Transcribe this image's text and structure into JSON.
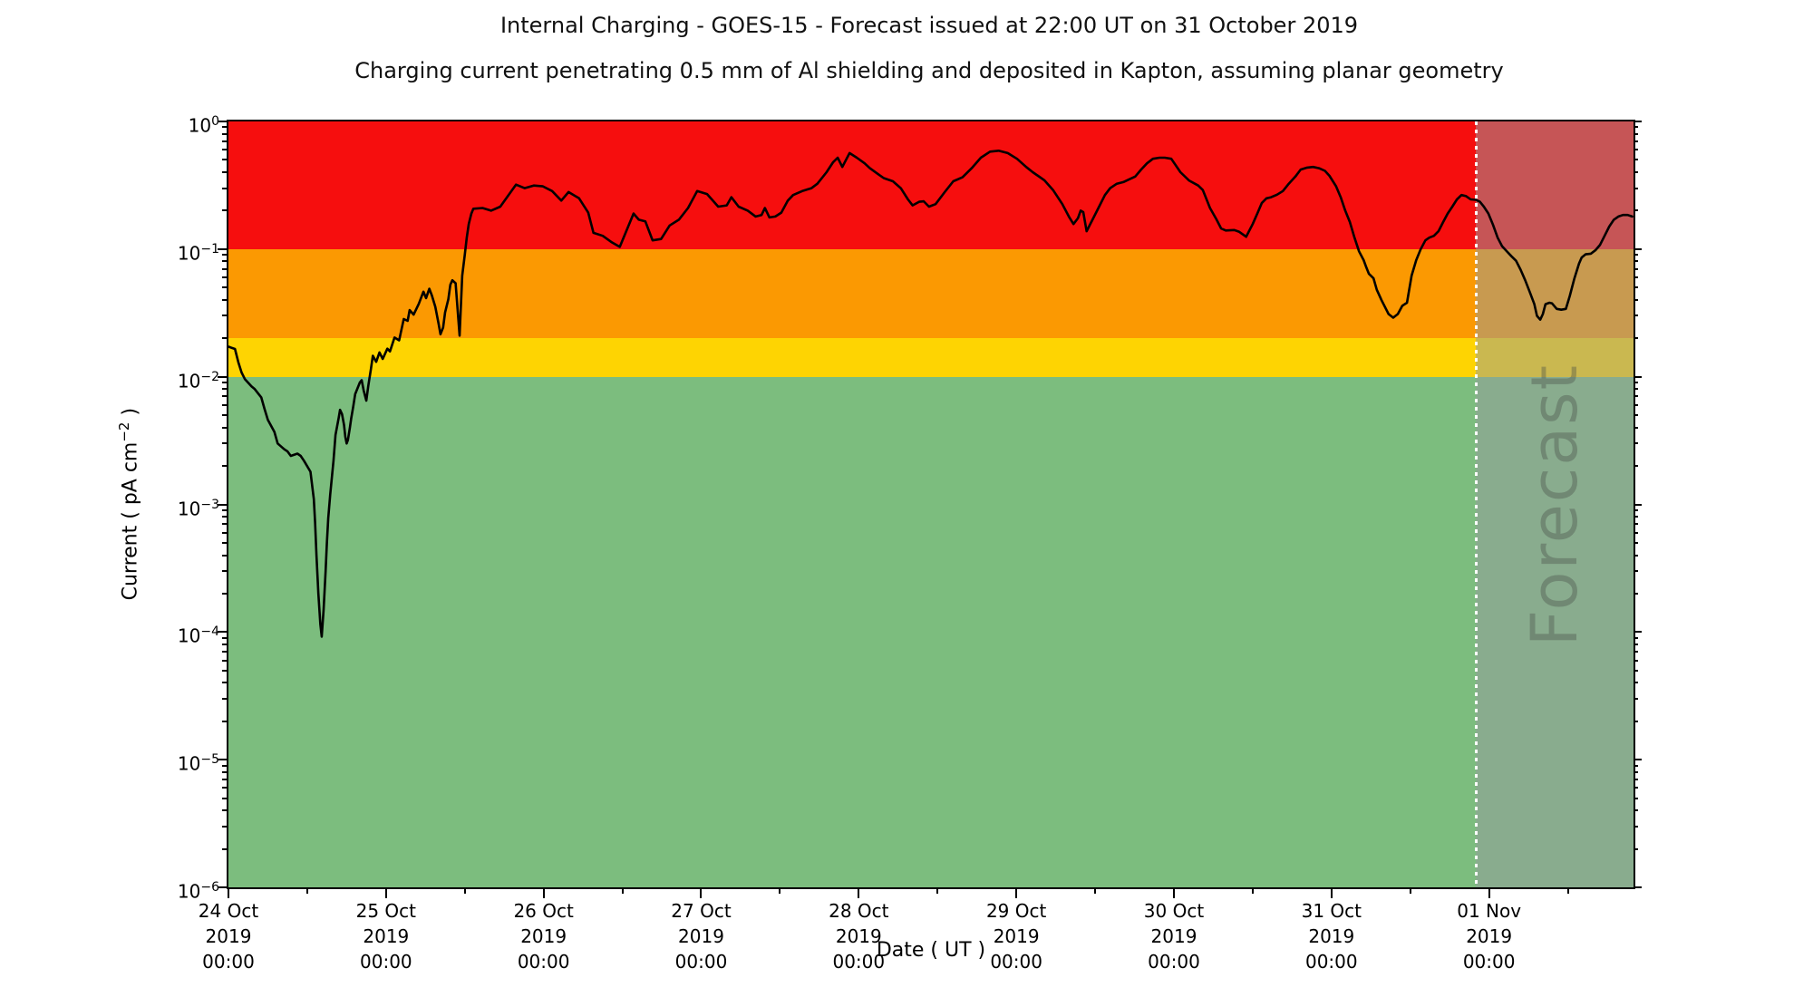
{
  "title": "Internal Charging - GOES-15 - Forecast issued at 22:00 UT on 31 October 2019",
  "subtitle": "Charging current penetrating 0.5 mm of Al shielding and deposited in Kapton, assuming planar geometry",
  "colors": {
    "red_band": "#f60e0e",
    "orange_band": "#fb9902",
    "yellow_band": "#fed402",
    "green_band": "#7cbd7e",
    "line": "#000000",
    "forecast_overlay": "rgba(150,155,158,0.5)",
    "forecast_text": "rgba(70,80,70,0.38)",
    "forecast_divider": "#ffffff",
    "axis": "#000000"
  },
  "bands": [
    {
      "name": "red",
      "from": 0.1,
      "to": 1.0
    },
    {
      "name": "orange",
      "from": 0.02,
      "to": 0.1
    },
    {
      "name": "yellow",
      "from": 0.01,
      "to": 0.02
    },
    {
      "name": "green",
      "from": 1e-06,
      "to": 0.01
    }
  ],
  "forecast": {
    "label": "Forecast",
    "start_hours": 190,
    "issued_text": "22:00 UT on 31 October 2019"
  },
  "axes": {
    "x": {
      "label": "Date ( UT )",
      "year_line": "2019",
      "time_line": "00:00",
      "major_tick_days": [
        "24 Oct",
        "25 Oct",
        "26 Oct",
        "27 Oct",
        "28 Oct",
        "29 Oct",
        "30 Oct",
        "31 Oct",
        "01 Nov"
      ],
      "minor_tick_interval_hours": 12,
      "range_hours": 214
    },
    "y": {
      "label_prefix": "Current ( pA cm",
      "label_sup": "−2",
      "label_suffix": " )",
      "tick_exponents": [
        0,
        -1,
        -2,
        -3,
        -4,
        -5,
        -6
      ],
      "scale": "log"
    }
  },
  "chart_data": {
    "type": "line",
    "title": "Internal Charging - GOES-15 - Forecast issued at 22:00 UT on 31 October 2019",
    "subtitle": "Charging current penetrating 0.5 mm of Al shielding and deposited in Kapton, assuming planar geometry",
    "xlabel": "Date ( UT )",
    "ylabel": "Current ( pA cm^-2 )",
    "x_unit": "hours since 2019-10-24 00:00 UT",
    "x_range_hours": [
      0,
      214
    ],
    "ylim": [
      1e-06,
      1
    ],
    "yscale": "log",
    "grid": false,
    "legend": false,
    "forecast_start_hours": 190,
    "threshold_bands": {
      "red": [
        0.1,
        1
      ],
      "orange": [
        0.02,
        0.1
      ],
      "yellow": [
        0.01,
        0.02
      ],
      "green": [
        1e-06,
        0.01
      ]
    },
    "series": [
      {
        "name": "Charging current",
        "color": "#000000",
        "points": [
          [
            0,
            0.0172
          ],
          [
            1,
            0.0165
          ],
          [
            1.5,
            0.013
          ],
          [
            2,
            0.0108
          ],
          [
            2.5,
            0.0096
          ],
          [
            3.5,
            0.0084
          ],
          [
            4,
            0.008
          ],
          [
            5,
            0.0069
          ],
          [
            5.5,
            0.0056
          ],
          [
            6,
            0.0046
          ],
          [
            7,
            0.0037
          ],
          [
            7.5,
            0.003
          ],
          [
            8.5,
            0.0027
          ],
          [
            9,
            0.0026
          ],
          [
            9.5,
            0.0024
          ],
          [
            10.5,
            0.0025
          ],
          [
            11,
            0.0024
          ],
          [
            11.5,
            0.0022
          ],
          [
            12.5,
            0.0018
          ],
          [
            13,
            0.0011
          ],
          [
            13.2,
            0.00072
          ],
          [
            13.4,
            0.0004
          ],
          [
            13.7,
            0.0002
          ],
          [
            14,
            0.000115
          ],
          [
            14.2,
            9.2e-05
          ],
          [
            14.5,
            0.00015
          ],
          [
            14.8,
            0.0003
          ],
          [
            15,
            0.0005
          ],
          [
            15.2,
            0.00078
          ],
          [
            15.5,
            0.0012
          ],
          [
            16,
            0.0022
          ],
          [
            16.3,
            0.0035
          ],
          [
            16.8,
            0.0048
          ],
          [
            17,
            0.0055
          ],
          [
            17.3,
            0.0051
          ],
          [
            17.6,
            0.0042
          ],
          [
            17.8,
            0.0034
          ],
          [
            18,
            0.003
          ],
          [
            18.2,
            0.0032
          ],
          [
            18.5,
            0.004
          ],
          [
            18.7,
            0.0047
          ],
          [
            19,
            0.0058
          ],
          [
            19.3,
            0.0073
          ],
          [
            20,
            0.009
          ],
          [
            20.3,
            0.0094
          ],
          [
            20.6,
            0.0078
          ],
          [
            21,
            0.0065
          ],
          [
            21.3,
            0.0085
          ],
          [
            21.7,
            0.0115
          ],
          [
            22,
            0.0146
          ],
          [
            22.5,
            0.0131
          ],
          [
            23,
            0.0155
          ],
          [
            23.5,
            0.0138
          ],
          [
            24.2,
            0.0166
          ],
          [
            24.6,
            0.0158
          ],
          [
            25.3,
            0.0203
          ],
          [
            26,
            0.0193
          ],
          [
            26.7,
            0.0283
          ],
          [
            27.3,
            0.0274
          ],
          [
            27.6,
            0.0333
          ],
          [
            28.2,
            0.0307
          ],
          [
            29,
            0.0373
          ],
          [
            29.7,
            0.0464
          ],
          [
            30.1,
            0.0413
          ],
          [
            30.6,
            0.0489
          ],
          [
            31,
            0.0432
          ],
          [
            31.5,
            0.0353
          ],
          [
            32,
            0.0261
          ],
          [
            32.3,
            0.0215
          ],
          [
            32.7,
            0.0243
          ],
          [
            33,
            0.0319
          ],
          [
            33.5,
            0.0405
          ],
          [
            33.8,
            0.0526
          ],
          [
            34.1,
            0.057
          ],
          [
            34.6,
            0.054
          ],
          [
            35.2,
            0.021
          ],
          [
            35.6,
            0.062
          ],
          [
            36,
            0.09
          ],
          [
            36.3,
            0.123
          ],
          [
            36.6,
            0.157
          ],
          [
            37,
            0.19
          ],
          [
            37.3,
            0.207
          ],
          [
            38.7,
            0.21
          ],
          [
            40,
            0.2
          ],
          [
            41.4,
            0.215
          ],
          [
            43.8,
            0.32
          ],
          [
            45.1,
            0.3
          ],
          [
            46.5,
            0.315
          ],
          [
            47.9,
            0.31
          ],
          [
            49.3,
            0.285
          ],
          [
            50.7,
            0.24
          ],
          [
            51.8,
            0.28
          ],
          [
            53.4,
            0.25
          ],
          [
            54.8,
            0.193
          ],
          [
            55.6,
            0.134
          ],
          [
            57,
            0.127
          ],
          [
            58.4,
            0.113
          ],
          [
            59.6,
            0.104
          ],
          [
            61.7,
            0.19
          ],
          [
            62.5,
            0.17
          ],
          [
            63.5,
            0.165
          ],
          [
            64.6,
            0.117
          ],
          [
            65.9,
            0.12
          ],
          [
            67.2,
            0.153
          ],
          [
            68.6,
            0.17
          ],
          [
            70,
            0.21
          ],
          [
            71.4,
            0.285
          ],
          [
            72.9,
            0.27
          ],
          [
            74.6,
            0.215
          ],
          [
            75.9,
            0.22
          ],
          [
            76.6,
            0.255
          ],
          [
            77.7,
            0.215
          ],
          [
            79.1,
            0.2
          ],
          [
            80.3,
            0.18
          ],
          [
            81.2,
            0.185
          ],
          [
            81.7,
            0.21
          ],
          [
            82.4,
            0.177
          ],
          [
            83.3,
            0.18
          ],
          [
            84.2,
            0.193
          ],
          [
            85.2,
            0.24
          ],
          [
            86,
            0.265
          ],
          [
            87.4,
            0.285
          ],
          [
            88.8,
            0.3
          ],
          [
            89.7,
            0.325
          ],
          [
            91.1,
            0.4
          ],
          [
            92.1,
            0.48
          ],
          [
            92.8,
            0.52
          ],
          [
            93.5,
            0.44
          ],
          [
            94.6,
            0.565
          ],
          [
            95.7,
            0.52
          ],
          [
            96.9,
            0.47
          ],
          [
            97.7,
            0.43
          ],
          [
            99,
            0.385
          ],
          [
            99.8,
            0.36
          ],
          [
            101.2,
            0.34
          ],
          [
            102.4,
            0.3
          ],
          [
            103.5,
            0.245
          ],
          [
            104.2,
            0.22
          ],
          [
            105.2,
            0.235
          ],
          [
            105.9,
            0.237
          ],
          [
            106.7,
            0.215
          ],
          [
            107.7,
            0.225
          ],
          [
            109.1,
            0.28
          ],
          [
            110.4,
            0.34
          ],
          [
            111.8,
            0.365
          ],
          [
            113.2,
            0.43
          ],
          [
            114.6,
            0.52
          ],
          [
            116,
            0.58
          ],
          [
            117.3,
            0.59
          ],
          [
            118.7,
            0.565
          ],
          [
            120.1,
            0.51
          ],
          [
            121.5,
            0.44
          ],
          [
            122.5,
            0.4
          ],
          [
            123.3,
            0.375
          ],
          [
            124.3,
            0.345
          ],
          [
            125.6,
            0.29
          ],
          [
            127,
            0.225
          ],
          [
            128,
            0.18
          ],
          [
            128.7,
            0.157
          ],
          [
            129.4,
            0.175
          ],
          [
            129.8,
            0.2
          ],
          [
            130.2,
            0.195
          ],
          [
            130.7,
            0.138
          ],
          [
            131.6,
            0.17
          ],
          [
            132.5,
            0.21
          ],
          [
            133.5,
            0.265
          ],
          [
            134.3,
            0.3
          ],
          [
            135.3,
            0.325
          ],
          [
            136.3,
            0.335
          ],
          [
            137.1,
            0.35
          ],
          [
            138.1,
            0.37
          ],
          [
            139,
            0.42
          ],
          [
            139.9,
            0.47
          ],
          [
            140.8,
            0.51
          ],
          [
            141.8,
            0.52
          ],
          [
            142.6,
            0.52
          ],
          [
            143.6,
            0.51
          ],
          [
            145,
            0.4
          ],
          [
            146.3,
            0.345
          ],
          [
            147.7,
            0.315
          ],
          [
            148.4,
            0.29
          ],
          [
            149.5,
            0.21
          ],
          [
            150.5,
            0.17
          ],
          [
            151.2,
            0.145
          ],
          [
            151.9,
            0.14
          ],
          [
            153.2,
            0.141
          ],
          [
            153.9,
            0.137
          ],
          [
            155,
            0.125
          ],
          [
            156,
            0.157
          ],
          [
            156.7,
            0.19
          ],
          [
            157.4,
            0.23
          ],
          [
            158.1,
            0.25
          ],
          [
            158.8,
            0.255
          ],
          [
            159.7,
            0.267
          ],
          [
            160.6,
            0.285
          ],
          [
            161.5,
            0.325
          ],
          [
            162.5,
            0.37
          ],
          [
            163.3,
            0.42
          ],
          [
            164.3,
            0.435
          ],
          [
            165.2,
            0.44
          ],
          [
            166.1,
            0.43
          ],
          [
            167,
            0.41
          ],
          [
            167.7,
            0.375
          ],
          [
            168.7,
            0.31
          ],
          [
            169.4,
            0.255
          ],
          [
            170.1,
            0.2
          ],
          [
            170.8,
            0.163
          ],
          [
            171.5,
            0.123
          ],
          [
            172.2,
            0.096
          ],
          [
            172.9,
            0.082
          ],
          [
            173.3,
            0.072
          ],
          [
            173.7,
            0.064
          ],
          [
            174.4,
            0.059
          ],
          [
            174.9,
            0.048
          ],
          [
            175.6,
            0.04
          ],
          [
            176.3,
            0.034
          ],
          [
            176.7,
            0.031
          ],
          [
            177.4,
            0.029
          ],
          [
            178.1,
            0.031
          ],
          [
            178.8,
            0.036
          ],
          [
            179.5,
            0.038
          ],
          [
            180.2,
            0.062
          ],
          [
            180.9,
            0.082
          ],
          [
            181.6,
            0.1
          ],
          [
            182.3,
            0.117
          ],
          [
            182.9,
            0.123
          ],
          [
            183.6,
            0.127
          ],
          [
            184.3,
            0.138
          ],
          [
            185,
            0.163
          ],
          [
            185.7,
            0.19
          ],
          [
            186.4,
            0.215
          ],
          [
            187.1,
            0.245
          ],
          [
            187.8,
            0.265
          ],
          [
            188.5,
            0.26
          ],
          [
            189.2,
            0.245
          ],
          [
            190,
            0.243
          ],
          [
            190.6,
            0.235
          ],
          [
            191.2,
            0.215
          ],
          [
            191.9,
            0.19
          ],
          [
            192.6,
            0.155
          ],
          [
            193.3,
            0.123
          ],
          [
            194,
            0.105
          ],
          [
            194.7,
            0.096
          ],
          [
            195.4,
            0.088
          ],
          [
            196.1,
            0.081
          ],
          [
            196.8,
            0.069
          ],
          [
            197.5,
            0.057
          ],
          [
            198.2,
            0.046
          ],
          [
            198.9,
            0.037
          ],
          [
            199.3,
            0.03
          ],
          [
            199.8,
            0.028
          ],
          [
            200.2,
            0.031
          ],
          [
            200.6,
            0.037
          ],
          [
            201.2,
            0.038
          ],
          [
            201.6,
            0.0375
          ],
          [
            202.3,
            0.034
          ],
          [
            203,
            0.0335
          ],
          [
            203.7,
            0.034
          ],
          [
            204.3,
            0.043
          ],
          [
            205,
            0.059
          ],
          [
            205.7,
            0.077
          ],
          [
            206.1,
            0.086
          ],
          [
            206.7,
            0.091
          ],
          [
            207.5,
            0.092
          ],
          [
            208.2,
            0.098
          ],
          [
            208.9,
            0.108
          ],
          [
            209.6,
            0.127
          ],
          [
            210.3,
            0.15
          ],
          [
            211,
            0.17
          ],
          [
            211.7,
            0.18
          ],
          [
            212.4,
            0.185
          ],
          [
            213.1,
            0.185
          ],
          [
            213.8,
            0.18
          ]
        ]
      }
    ]
  }
}
